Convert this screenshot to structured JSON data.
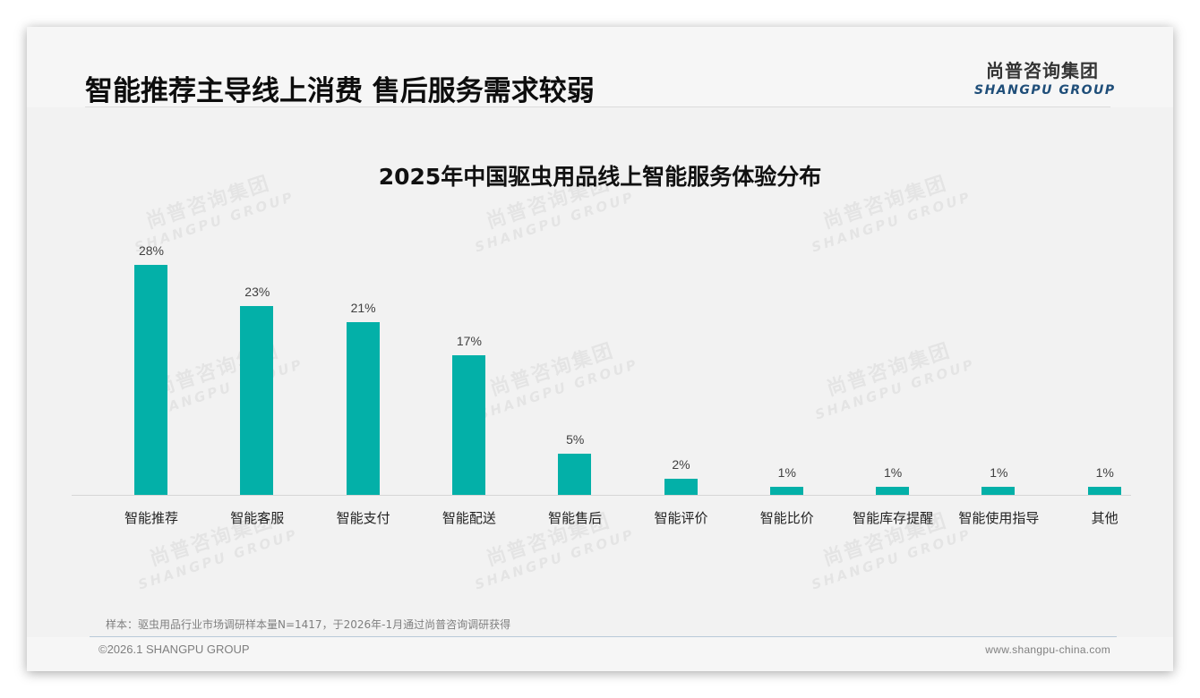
{
  "header": {
    "title": "智能推荐主导线上消费 售后服务需求较弱",
    "logo_cn": "尚普咨询集团",
    "logo_en": "SHANGPU GROUP"
  },
  "watermark": {
    "cn": "尚普咨询集团",
    "en": "SHANGPU GROUP"
  },
  "chart_data": {
    "type": "bar",
    "title": "2025年中国驱虫用品线上智能服务体验分布",
    "categories": [
      "智能推荐",
      "智能客服",
      "智能支付",
      "智能配送",
      "智能售后",
      "智能评价",
      "智能比价",
      "智能库存提醒",
      "智能使用指导",
      "其他"
    ],
    "values": [
      28,
      23,
      21,
      17,
      5,
      2,
      1,
      1,
      1,
      1
    ],
    "value_labels": [
      "28%",
      "23%",
      "21%",
      "17%",
      "5%",
      "2%",
      "1%",
      "1%",
      "1%",
      "1%"
    ],
    "unit": "%",
    "xlabel": "",
    "ylabel": "",
    "ylim": [
      0,
      30
    ],
    "grid": false,
    "legend": null,
    "bar_color": "#03b0a8"
  },
  "footer": {
    "sample_note": "样本：驱虫用品行业市场调研样本量N=1417，于2026年-1月通过尚普咨询调研获得",
    "copyright": "©2026.1 SHANGPU GROUP",
    "website": "www.shangpu-china.com"
  }
}
